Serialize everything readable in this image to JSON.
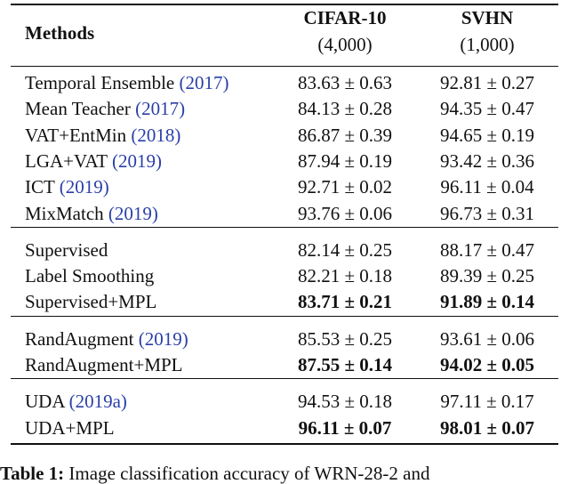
{
  "header": {
    "methods": "Methods",
    "columns": [
      {
        "name": "CIFAR-10",
        "sub": "(4,000)"
      },
      {
        "name": "SVHN",
        "sub": "(1,000)"
      }
    ]
  },
  "groups": [
    {
      "rows": [
        {
          "method": "Temporal Ensemble",
          "cite": "(2017)",
          "values": [
            "83.63 ± 0.63",
            "92.81 ± 0.27"
          ],
          "bold": false
        },
        {
          "method": "Mean Teacher",
          "cite": "(2017)",
          "values": [
            "84.13 ± 0.28",
            "94.35 ± 0.47"
          ],
          "bold": false
        },
        {
          "method": "VAT+EntMin",
          "cite": "(2018)",
          "values": [
            "86.87 ± 0.39",
            "94.65 ± 0.19"
          ],
          "bold": false
        },
        {
          "method": "LGA+VAT",
          "cite": "(2019)",
          "values": [
            "87.94 ± 0.19",
            "93.42 ± 0.36"
          ],
          "bold": false
        },
        {
          "method": "ICT",
          "cite": "(2019)",
          "values": [
            "92.71 ± 0.02",
            "96.11 ± 0.04"
          ],
          "bold": false
        },
        {
          "method": "MixMatch",
          "cite": "(2019)",
          "values": [
            "93.76 ± 0.06",
            "96.73 ± 0.31"
          ],
          "bold": false
        }
      ]
    },
    {
      "rows": [
        {
          "method": "Supervised",
          "values": [
            "82.14 ± 0.25",
            "88.17 ± 0.47"
          ],
          "bold": false
        },
        {
          "method": "Label Smoothing",
          "values": [
            "82.21 ± 0.18",
            "89.39 ± 0.25"
          ],
          "bold": false
        },
        {
          "method": "Supervised+MPL",
          "values": [
            "83.71 ± 0.21",
            "91.89 ± 0.14"
          ],
          "bold": true
        }
      ]
    },
    {
      "rows": [
        {
          "method": "RandAugment",
          "cite": "(2019)",
          "values": [
            "85.53 ± 0.25",
            "93.61 ± 0.06"
          ],
          "bold": false
        },
        {
          "method": "RandAugment+MPL",
          "values": [
            "87.55 ± 0.14",
            "94.02 ± 0.05"
          ],
          "bold": true
        }
      ]
    },
    {
      "rows": [
        {
          "method": "UDA",
          "cite": "(2019a)",
          "values": [
            "94.53 ± 0.18",
            "97.11 ± 0.17"
          ],
          "bold": false
        },
        {
          "method": "UDA+MPL",
          "values": [
            "96.11 ± 0.07",
            "98.01 ± 0.07"
          ],
          "bold": true
        }
      ]
    }
  ],
  "caption": {
    "label": "Table 1:",
    "text": "Image classification accuracy of WRN-28-2 and"
  }
}
